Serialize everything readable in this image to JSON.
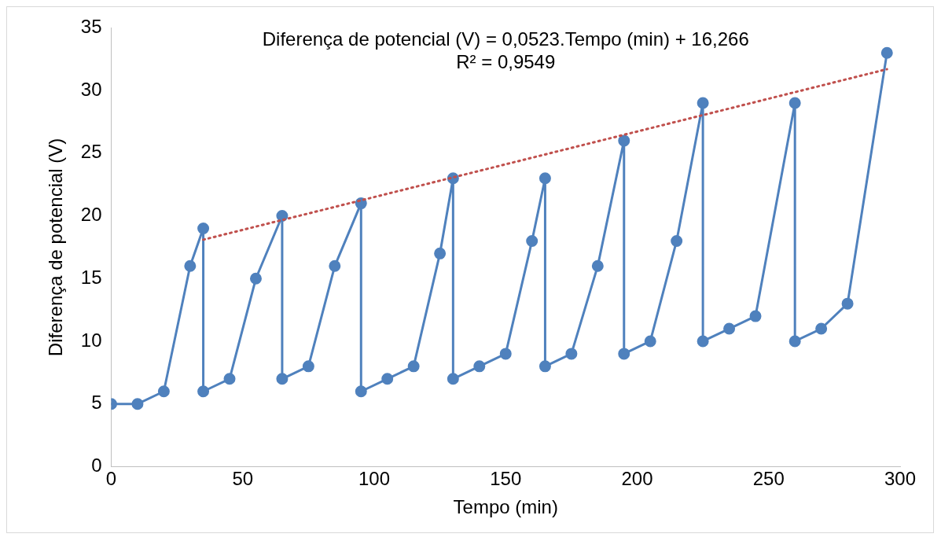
{
  "chart_data": {
    "type": "line",
    "xlabel": "Tempo (min)",
    "ylabel": "Diferença de potencial (V)",
    "annotations": [
      "Diferença de potencial (V) = 0,0523.Tempo (min) + 16,266",
      "R² = 0,9549"
    ],
    "xlim": [
      0,
      300
    ],
    "xticks": [
      0,
      50,
      100,
      150,
      200,
      250,
      300
    ],
    "ylim": [
      0,
      35
    ],
    "yticks": [
      0,
      5,
      10,
      15,
      20,
      25,
      30,
      35
    ],
    "grid": false,
    "series": [
      {
        "color": "#4f81bd",
        "marker": "circle",
        "line_style": "solid",
        "x": [
          0,
          10,
          20,
          30,
          35,
          35,
          45,
          55,
          65,
          65,
          75,
          85,
          95,
          95,
          105,
          115,
          125,
          130,
          130,
          140,
          150,
          160,
          165,
          165,
          175,
          185,
          195,
          195,
          205,
          215,
          225,
          225,
          235,
          245,
          260,
          260,
          270,
          280,
          295
        ],
        "values": [
          5,
          5,
          6,
          16,
          19,
          6,
          7,
          15,
          20,
          7,
          8,
          16,
          21,
          6,
          7,
          8,
          17,
          23,
          7,
          8,
          9,
          18,
          23,
          8,
          9,
          16,
          26,
          9,
          10,
          18,
          29,
          10,
          11,
          12,
          29,
          10,
          11,
          13,
          33
        ]
      },
      {
        "color": "#c0504d",
        "marker": "none",
        "line_style": "dotted",
        "x": [
          35,
          295
        ],
        "values": [
          18.1,
          31.7
        ]
      }
    ]
  }
}
